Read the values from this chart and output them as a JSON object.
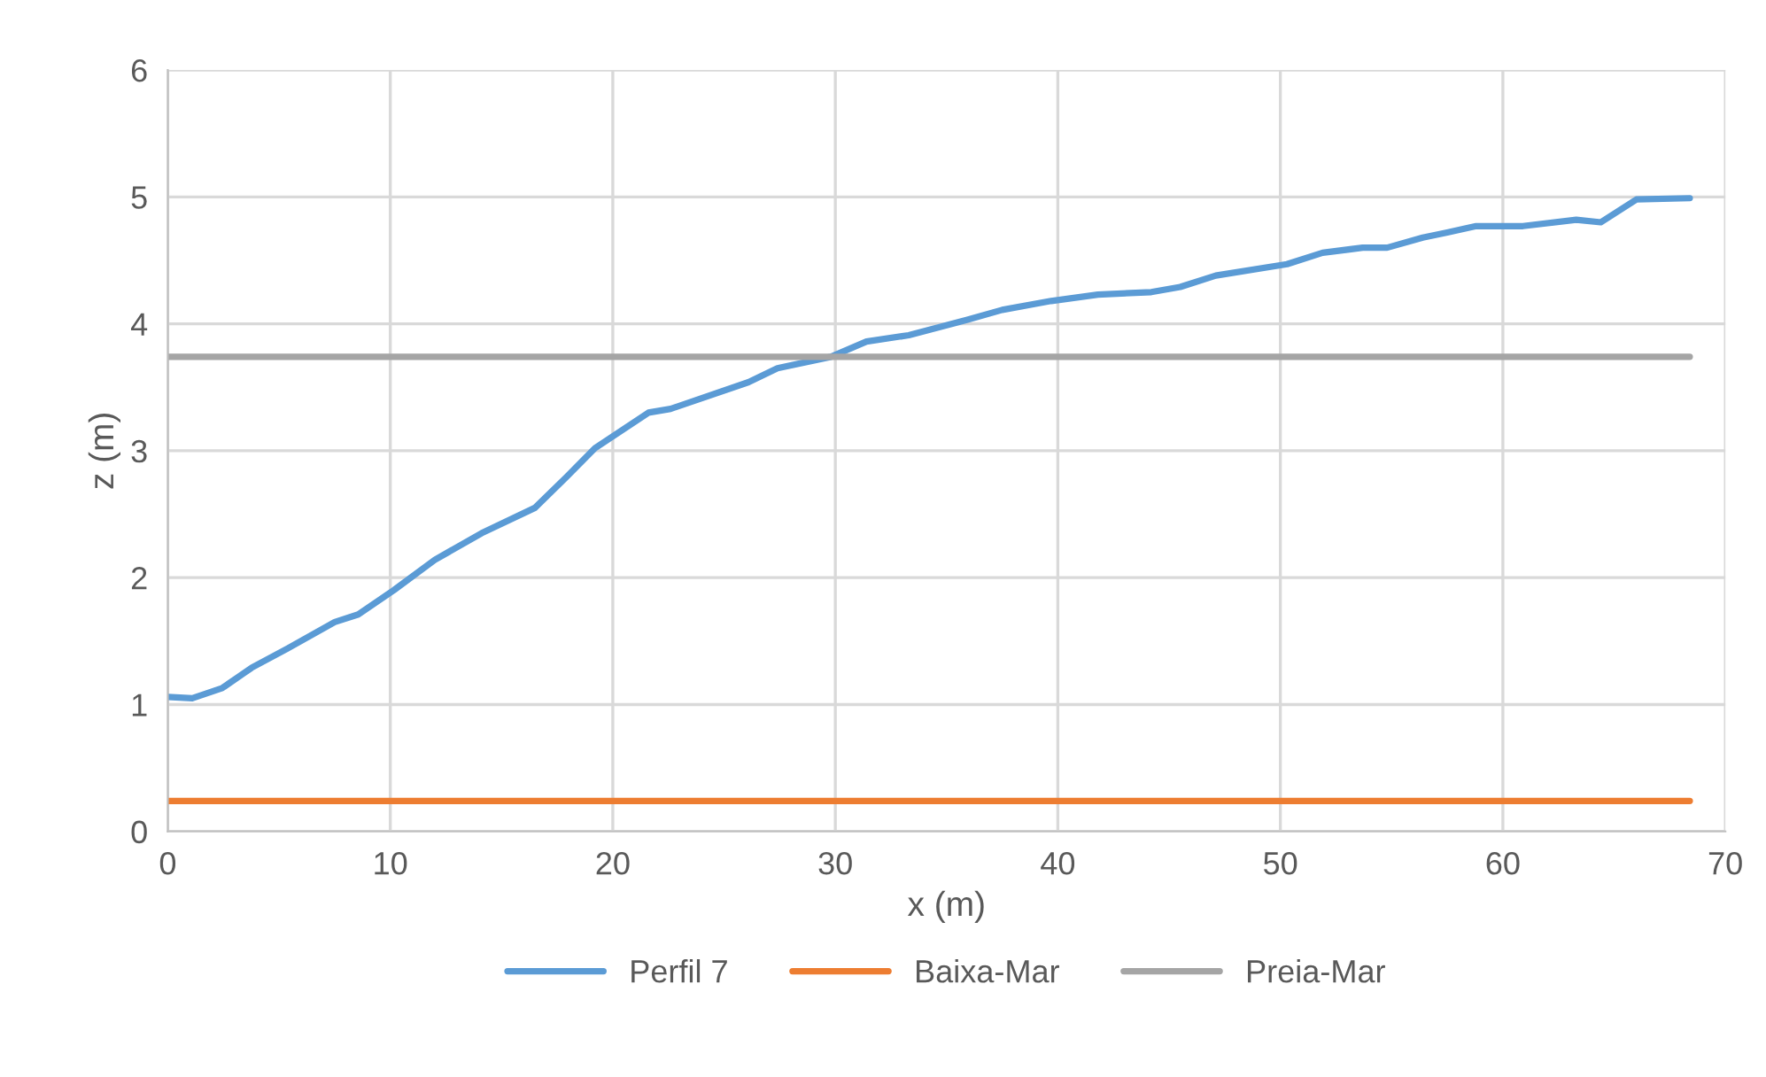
{
  "chart_data": {
    "type": "line",
    "xlabel": "x (m)",
    "ylabel": "z (m)",
    "xlim": [
      0,
      70
    ],
    "xticks": [
      0,
      10,
      20,
      30,
      40,
      50,
      60,
      70
    ],
    "ylim": [
      0,
      6
    ],
    "yticks": [
      0,
      1,
      2,
      3,
      4,
      5,
      6
    ],
    "grid": true,
    "legend": "bottom",
    "marker": "none",
    "line_style": "solid",
    "series": [
      {
        "name": "Perfil 7",
        "color": "#5b9bd5",
        "x": [
          0,
          1.1,
          2.45,
          3.77,
          5.37,
          7.5,
          8.56,
          10.15,
          12.0,
          14.1,
          16.5,
          17.9,
          19.2,
          21.6,
          22.6,
          26.1,
          27.4,
          29.8,
          31.4,
          33.3,
          35.9,
          37.5,
          39.7,
          41.8,
          44.2,
          45.5,
          47.1,
          50.3,
          51.9,
          53.7,
          54.8,
          56.4,
          57.5,
          58.8,
          60.9,
          63.3,
          64.4,
          66.0,
          68.4
        ],
        "values": [
          1.06,
          1.05,
          1.13,
          1.29,
          1.44,
          1.65,
          1.71,
          1.9,
          2.14,
          2.35,
          2.55,
          2.79,
          3.02,
          3.3,
          3.33,
          3.54,
          3.65,
          3.74,
          3.86,
          3.91,
          4.03,
          4.11,
          4.18,
          4.23,
          4.25,
          4.29,
          4.38,
          4.47,
          4.56,
          4.6,
          4.6,
          4.68,
          4.72,
          4.77,
          4.77,
          4.82,
          4.8,
          4.98,
          4.99
        ]
      },
      {
        "name": "Baixa-Mar",
        "color": "#ed7d31",
        "x": [
          0,
          68.4
        ],
        "values": [
          0.24,
          0.24
        ]
      },
      {
        "name": "Preia-Mar",
        "color": "#a5a5a5",
        "x": [
          0,
          68.4
        ],
        "values": [
          3.74,
          3.74
        ]
      }
    ]
  }
}
